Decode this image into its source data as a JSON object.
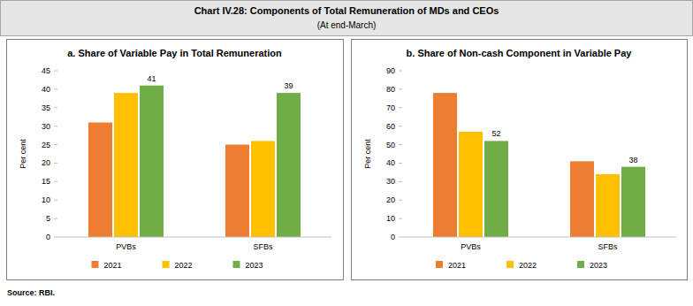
{
  "title": "Chart IV.28: Components of Total Remuneration of MDs and CEOs",
  "subtitle": "(At end-March)",
  "source": "Source: RBI.",
  "chart_data": [
    {
      "type": "bar",
      "title": "a. Share of Variable Pay in Total Remuneration",
      "y_label": "Per cent",
      "categories": [
        "PVBs",
        "SFBs"
      ],
      "series": [
        {
          "name": "2021",
          "color": "#ED7D31",
          "values": [
            31,
            25
          ]
        },
        {
          "name": "2022",
          "color": "#FFC000",
          "values": [
            39,
            26
          ]
        },
        {
          "name": "2023",
          "color": "#70AD47",
          "values": [
            41,
            39
          ],
          "data_labels": true
        }
      ],
      "ylim": [
        0,
        45
      ],
      "yticks": [
        0,
        5,
        10,
        15,
        20,
        25,
        30,
        35,
        40,
        45
      ],
      "grid": false,
      "legend": "bottom"
    },
    {
      "type": "bar",
      "title": "b. Share of Non-cash Component in Variable Pay",
      "y_label": "Per cent",
      "categories": [
        "PVBs",
        "SFBs"
      ],
      "series": [
        {
          "name": "2021",
          "color": "#ED7D31",
          "values": [
            78,
            41
          ]
        },
        {
          "name": "2022",
          "color": "#FFC000",
          "values": [
            57,
            34
          ]
        },
        {
          "name": "2023",
          "color": "#70AD47",
          "values": [
            52,
            38
          ],
          "data_labels": true
        }
      ],
      "ylim": [
        0,
        90
      ],
      "yticks": [
        0,
        10,
        20,
        30,
        40,
        50,
        60,
        70,
        80,
        90
      ],
      "grid": false,
      "legend": "bottom"
    }
  ]
}
